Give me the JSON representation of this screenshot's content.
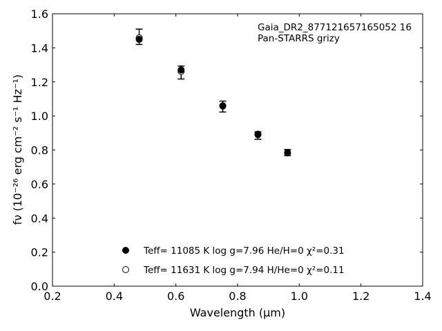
{
  "chart_data": {
    "type": "scatter",
    "title": "",
    "xlabel": "Wavelength (μm)",
    "ylabel": "fν (10⁻²⁶ erg cm⁻² s⁻¹ Hz⁻¹)",
    "xlim": [
      0.2,
      1.4
    ],
    "ylim": [
      0.0,
      1.6
    ],
    "xticks": [
      0.2,
      0.4,
      0.6,
      0.8,
      1.0,
      1.2,
      1.4
    ],
    "yticks": [
      0.0,
      0.2,
      0.4,
      0.6,
      0.8,
      1.0,
      1.2,
      1.4,
      1.6
    ],
    "grid": false,
    "annotations": [
      "Gaia_DR2_877121657165052 16",
      "Pan-STARRS grizy"
    ],
    "observed": {
      "x": [
        0.481,
        0.617,
        0.752,
        0.866,
        0.962
      ],
      "y": [
        1.465,
        1.255,
        1.055,
        0.885,
        0.785
      ],
      "yerr": [
        0.045,
        0.038,
        0.032,
        0.022,
        0.018
      ]
    },
    "series": [
      {
        "marker": "filled",
        "legend_text": "Teff= 11085 K  log g=7.96  He/H=0  χ²=0.31",
        "x": [
          0.481,
          0.617,
          0.752,
          0.866,
          0.962
        ],
        "y": [
          1.45,
          1.27,
          1.06,
          0.893,
          0.783
        ]
      },
      {
        "marker": "open",
        "legend_text": "Teff= 11631 K  log g=7.94  H/He=0  χ²=0.11",
        "x": [
          0.481,
          0.617,
          0.752,
          0.866,
          0.962
        ],
        "y": [
          1.458,
          1.262,
          1.058,
          0.89,
          0.785
        ]
      }
    ],
    "legend_position": "lower-center"
  }
}
